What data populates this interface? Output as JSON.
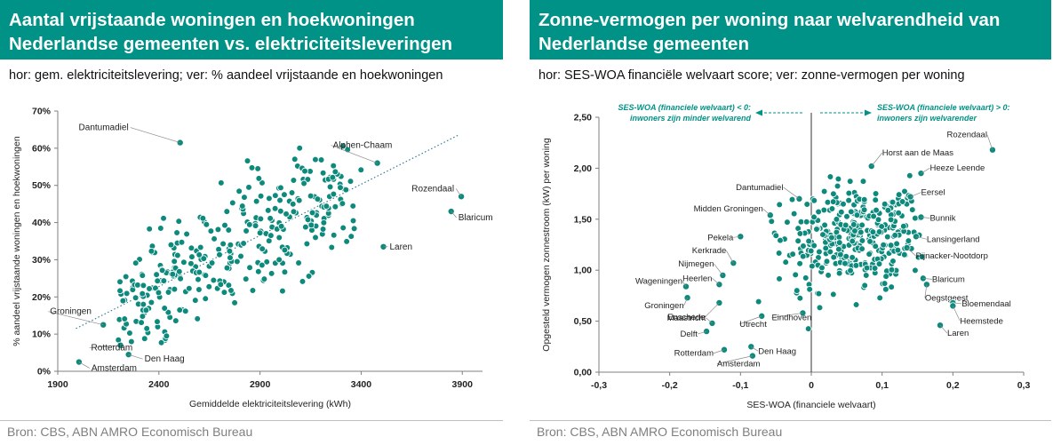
{
  "left": {
    "title_line1": "Aantal vrijstaande woningen en hoekwoningen",
    "title_line2": "Nederlandse gemeenten vs. elektriciteitsleveringen",
    "subtitle": "hor: gem. elektriciteitslevering; ver: % aandeel vrijstaande en hoekwoningen",
    "source": "Bron: CBS, ABN AMRO Economisch Bureau"
  },
  "right": {
    "title_line1": "Zonne-vermogen per woning naar welvarendheid van",
    "title_line2": "Nederlandse gemeenten",
    "subtitle": "hor: SES-WOA financiële welvaart score; ver: zonne-vermogen per woning",
    "source": "Bron: CBS, ABN AMRO Economisch Bureau"
  },
  "colors": {
    "accent": "#009286",
    "marker": "#0e8a7d",
    "trend": "#2b6f8f"
  },
  "chart_data": [
    {
      "type": "scatter",
      "title": "",
      "xlabel": "Gemiddelde elektriciteitslevering (kWh)",
      "ylabel": "% aandeel vrijstaande woningen en hoekwoningen",
      "xlim": [
        1900,
        4000
      ],
      "ylim": [
        0,
        70
      ],
      "xticks": [
        "1900",
        "2400",
        "2900",
        "3400",
        "3900"
      ],
      "yticks": [
        "0%",
        "10%",
        "20%",
        "30%",
        "40%",
        "50%",
        "60%",
        "70%"
      ],
      "grid": false,
      "trendline": {
        "x": [
          1990,
          3880
        ],
        "y": [
          11.5,
          63.5
        ]
      },
      "labeled_points": [
        {
          "label": "Dantumadiel",
          "x": 2505,
          "y": 61.5
        },
        {
          "label": "Alphen-Chaam",
          "x": 3480,
          "y": 56
        },
        {
          "label": "Rozendaal",
          "x": 3895,
          "y": 47
        },
        {
          "label": "Blaricum",
          "x": 3845,
          "y": 43
        },
        {
          "label": "Laren",
          "x": 3510,
          "y": 33.5
        },
        {
          "label": "Groningen",
          "x": 2125,
          "y": 12.5
        },
        {
          "label": "Rotterdam",
          "x": 2210,
          "y": 7
        },
        {
          "label": "Den Haag",
          "x": 2250,
          "y": 4.5
        },
        {
          "label": "Amsterdam",
          "x": 2005,
          "y": 2.5
        }
      ]
    },
    {
      "type": "scatter",
      "title": "",
      "xlabel": "SES-WOA (financiele welvaart)",
      "ylabel": "Opgesteld vermogen zonnestroom (kW) per woning",
      "xlim": [
        -0.3,
        0.3
      ],
      "ylim": [
        0,
        2.5
      ],
      "xticks": [
        "-0,3",
        "-0,2",
        "-0,1",
        "0",
        "0,1",
        "0,2",
        "0,3"
      ],
      "yticks": [
        "0,00",
        "0,50",
        "1,00",
        "1,50",
        "2,00",
        "2,50"
      ],
      "grid": false,
      "annotation_left": [
        "SES-WOA (financiele welvaart) < 0:",
        "inwoners zijn minder welvarend"
      ],
      "annotation_right": [
        "SES-WOA (financiele welvaart) > 0:",
        "inwoners zijn welvarender"
      ],
      "labeled_points": [
        {
          "label": "Rozendaal",
          "x": 0.256,
          "y": 2.18
        },
        {
          "label": "Horst aan de Maas",
          "x": 0.085,
          "y": 2.02
        },
        {
          "label": "Heeze Leende",
          "x": 0.155,
          "y": 1.95
        },
        {
          "label": "Eersel",
          "x": 0.14,
          "y": 1.72
        },
        {
          "label": "Bunnik",
          "x": 0.155,
          "y": 1.52
        },
        {
          "label": "Lansingerland",
          "x": 0.148,
          "y": 1.33
        },
        {
          "label": "Pijnacker-Nootdorp",
          "x": 0.135,
          "y": 1.22
        },
        {
          "label": "Blaricum",
          "x": 0.158,
          "y": 0.92
        },
        {
          "label": "Oegstgeest",
          "x": 0.163,
          "y": 0.86
        },
        {
          "label": "Bloemendaal",
          "x": 0.2,
          "y": 0.68
        },
        {
          "label": "Heemstede",
          "x": 0.2,
          "y": 0.65
        },
        {
          "label": "Laren",
          "x": 0.182,
          "y": 0.46
        },
        {
          "label": "Dantumadiel",
          "x": -0.017,
          "y": 1.7
        },
        {
          "label": "Midden Groningen",
          "x": -0.058,
          "y": 1.54
        },
        {
          "label": "Pekela",
          "x": -0.1,
          "y": 1.33
        },
        {
          "label": "Kerkrade",
          "x": -0.11,
          "y": 1.07
        },
        {
          "label": "Nijmegen",
          "x": -0.125,
          "y": 0.95
        },
        {
          "label": "Heerlen",
          "x": -0.13,
          "y": 0.86
        },
        {
          "label": "Wageningen",
          "x": -0.177,
          "y": 0.84
        },
        {
          "label": "Groningen",
          "x": -0.175,
          "y": 0.73
        },
        {
          "label": "Enschede",
          "x": -0.13,
          "y": 0.68
        },
        {
          "label": "Eindhoven",
          "x": -0.012,
          "y": 0.58
        },
        {
          "label": "Utrecht",
          "x": -0.07,
          "y": 0.55
        },
        {
          "label": "Maastricht",
          "x": -0.14,
          "y": 0.48
        },
        {
          "label": "Delft",
          "x": -0.148,
          "y": 0.4
        },
        {
          "label": "Rotterdam",
          "x": -0.123,
          "y": 0.22
        },
        {
          "label": "Den Haag",
          "x": -0.085,
          "y": 0.25
        },
        {
          "label": "Amsterdam",
          "x": -0.083,
          "y": 0.16
        }
      ]
    }
  ]
}
